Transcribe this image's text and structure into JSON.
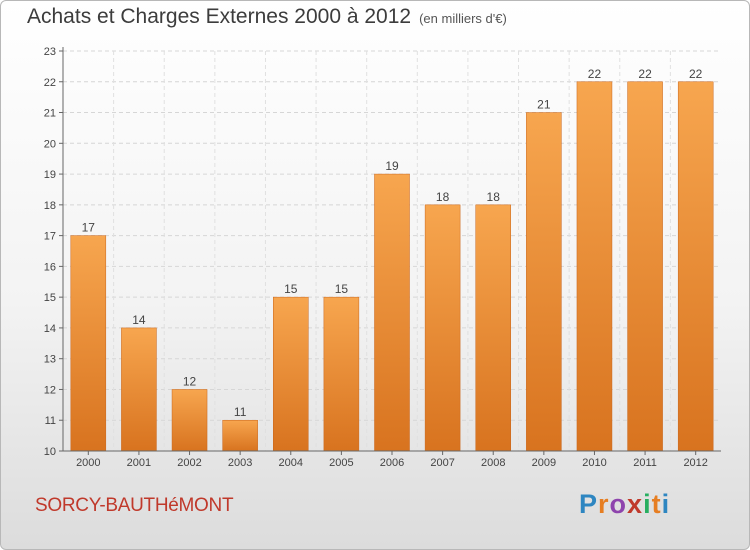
{
  "page": {
    "title": "Achats et Charges Externes 2000 à 2012",
    "unit_note": "(en milliers d'€)",
    "commune": "SORCY-BAUTHéMONT",
    "brand": {
      "letters": [
        "P",
        "r",
        "o",
        "x",
        "i",
        "t",
        "i"
      ],
      "colors": [
        "#2e86c1",
        "#e67e22",
        "#8e44ad",
        "#c0392b",
        "#27ae60",
        "#e67e22",
        "#2e86c1"
      ]
    }
  },
  "chart_data": {
    "type": "bar",
    "categories": [
      "2000",
      "2001",
      "2002",
      "2003",
      "2004",
      "2005",
      "2006",
      "2007",
      "2008",
      "2009",
      "2010",
      "2011",
      "2012"
    ],
    "values": [
      17,
      14,
      12,
      11,
      15,
      15,
      19,
      18,
      18,
      21,
      22,
      22,
      22
    ],
    "data_labels": [
      "17",
      "14",
      "12",
      "11",
      "15",
      "15",
      "19",
      "18",
      "18",
      "21",
      "22",
      "22",
      "22"
    ],
    "y_ticks": [
      "10",
      "11",
      "12",
      "13",
      "14",
      "15",
      "16",
      "17",
      "18",
      "19",
      "20",
      "21",
      "22",
      "23"
    ],
    "ylim": [
      10,
      23
    ],
    "grid": true,
    "bar_color_top": "#f7a64f",
    "bar_color_bottom": "#d8731f",
    "title_color": "#3c3c3c",
    "commune_color": "#c0392b"
  }
}
